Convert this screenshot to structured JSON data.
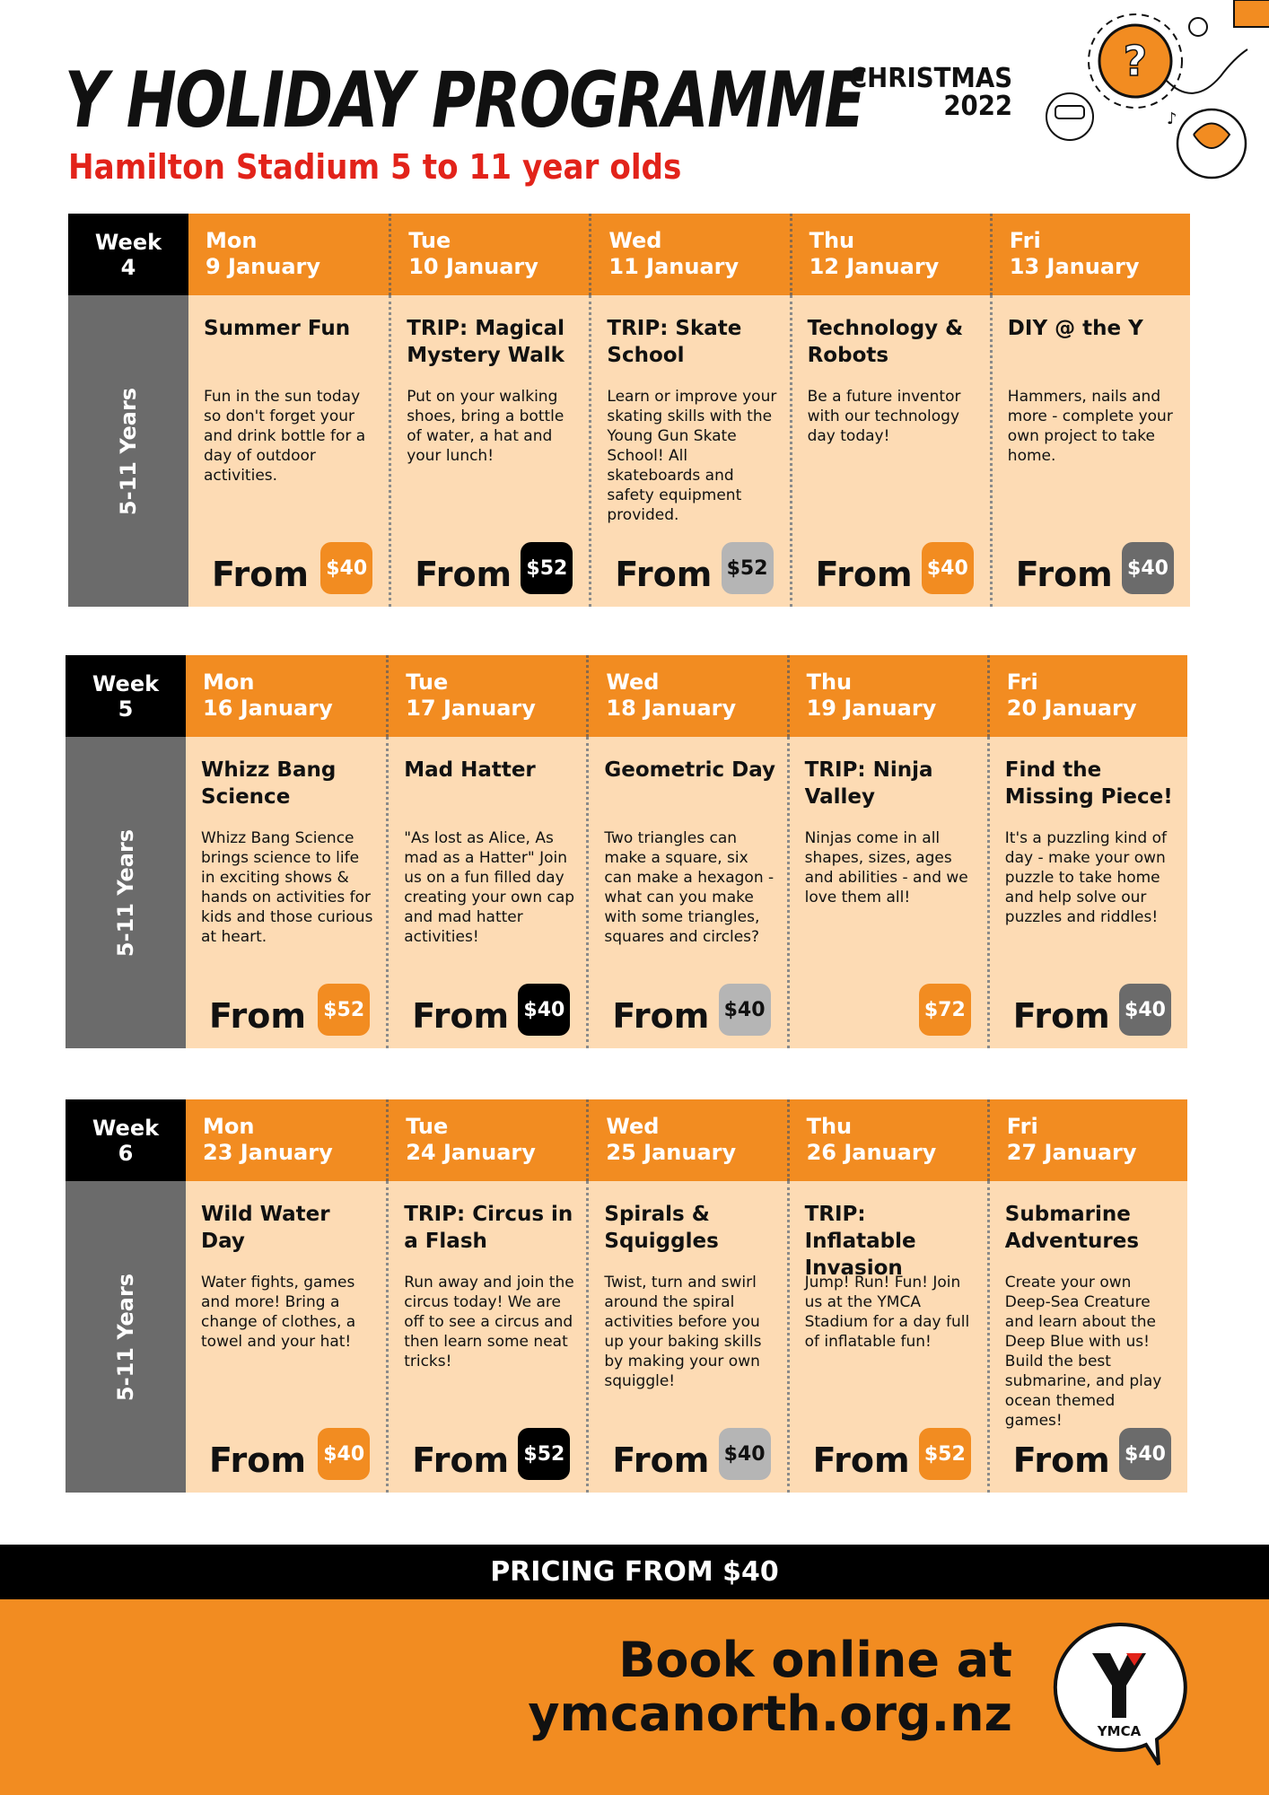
{
  "header": {
    "title": "Y HOLIDAY PROGRAMME",
    "subtitle": "Hamilton Stadium 5 to 11 year olds",
    "season": "CHRISTMAS",
    "year": "2022"
  },
  "colors": {
    "orange": "#F28C21",
    "peach": "#FDDBB4",
    "black": "#000000",
    "light_gray": "#B5B5B5",
    "dark_gray": "#6B6B6B",
    "red": "#E2231A"
  },
  "from_label": "From",
  "weeks": [
    {
      "label": "Week",
      "number": "4",
      "age": "5-11 Years",
      "days": [
        {
          "day": "Mon",
          "date": "9 January",
          "title": "Summer Fun",
          "desc": "Fun in the sun today so don't forget your and drink bottle for a day of outdoor activities.",
          "price": "$40",
          "badge": "orange",
          "from": true
        },
        {
          "day": "Tue",
          "date": "10 January",
          "title": "TRIP: Magical Mystery Walk",
          "desc": "Put on your walking shoes, bring a bottle of water, a hat and your lunch!",
          "price": "$52",
          "badge": "black",
          "from": true
        },
        {
          "day": "Wed",
          "date": "11 January",
          "title": "TRIP: Skate School",
          "desc": "Learn or improve your skating skills with the Young Gun Skate School! All skateboards and safety equipment provided.",
          "price": "$52",
          "badge": "light_gray",
          "from": true
        },
        {
          "day": "Thu",
          "date": "12 January",
          "title": "Technology & Robots",
          "desc": "Be a future inventor with our technology day today!",
          "price": "$40",
          "badge": "orange",
          "from": true
        },
        {
          "day": "Fri",
          "date": "13 January",
          "title": "DIY @ the Y",
          "desc": "Hammers, nails and more - complete your own project to take home.",
          "price": "$40",
          "badge": "dark_gray",
          "from": true
        }
      ]
    },
    {
      "label": "Week",
      "number": "5",
      "age": "5-11 Years",
      "days": [
        {
          "day": "Mon",
          "date": "16 January",
          "title": "Whizz Bang Science",
          "desc": "Whizz Bang Science brings science to life in exciting shows & hands on activities for kids and those curious at heart.",
          "price": "$52",
          "badge": "orange",
          "from": true
        },
        {
          "day": "Tue",
          "date": "17 January",
          "title": "Mad Hatter",
          "desc": "\"As lost as Alice, As mad as a Hatter\" Join us on a fun filled day creating your own cap and mad hatter activities!",
          "price": "$40",
          "badge": "black",
          "from": true
        },
        {
          "day": "Wed",
          "date": "18 January",
          "title": "Geometric Day",
          "desc": "Two triangles can make a square, six can make a hexagon - what can you make with some triangles, squares and circles?",
          "price": "$40",
          "badge": "light_gray",
          "from": true
        },
        {
          "day": "Thu",
          "date": "19 January",
          "title": "TRIP: Ninja Valley",
          "desc": "Ninjas come in all shapes, sizes, ages and abilities - and we love them all!",
          "price": "$72",
          "badge": "orange",
          "from": false
        },
        {
          "day": "Fri",
          "date": "20 January",
          "title": "Find the Missing Piece!",
          "desc": "It's a puzzling kind of day - make your own puzzle to take home and help solve our puzzles and riddles!",
          "price": "$40",
          "badge": "dark_gray",
          "from": true
        }
      ]
    },
    {
      "label": "Week",
      "number": "6",
      "age": "5-11 Years",
      "days": [
        {
          "day": "Mon",
          "date": "23 January",
          "title": "Wild Water Day",
          "desc": "Water fights, games and more! Bring a change of clothes, a towel and your hat!",
          "price": "$40",
          "badge": "orange",
          "from": true
        },
        {
          "day": "Tue",
          "date": "24 January",
          "title": "TRIP: Circus in a Flash",
          "desc": "Run away and join the circus today! We are off to see a circus and then learn some neat tricks!",
          "price": "$52",
          "badge": "black",
          "from": true
        },
        {
          "day": "Wed",
          "date": "25 January",
          "title": "Spirals & Squiggles",
          "desc": "Twist, turn and swirl around the spiral activities before you up your baking skills by making your own squiggle!",
          "price": "$40",
          "badge": "light_gray",
          "from": true
        },
        {
          "day": "Thu",
          "date": "26 January",
          "title": "TRIP: Inflatable Invasion",
          "desc": "Jump! Run! Fun! Join us at the YMCA Stadium for a day full of inflatable fun!",
          "price": "$52",
          "badge": "orange",
          "from": true
        },
        {
          "day": "Fri",
          "date": "27 January",
          "title": "Submarine Adventures",
          "desc": "Create your own Deep-Sea Creature and learn about the Deep Blue with us! Build the best submarine, and play ocean themed games!",
          "price": "$40",
          "badge": "dark_gray",
          "from": true
        }
      ]
    }
  ],
  "pricing": "PRICING FROM $40",
  "footer": {
    "line1": "Book online at",
    "line2": "ymcanorth.org.nz",
    "logo_text": "YMCA"
  }
}
